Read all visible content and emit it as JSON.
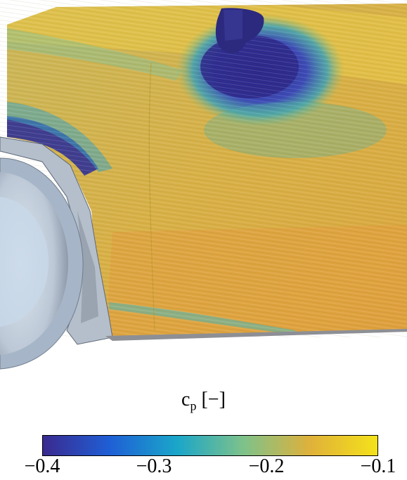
{
  "colorbar": {
    "variable": "c",
    "variable_subscript": "p",
    "unit": "[−]",
    "ticks": [
      "−0.4",
      "−0.3",
      "−0.2",
      "−0.1"
    ],
    "range": [
      -0.4,
      -0.1
    ],
    "colormap": [
      "#3a2a8f",
      "#1f5fd6",
      "#1aa6c9",
      "#7ec28a",
      "#e0b13a",
      "#f4e21a"
    ]
  }
}
